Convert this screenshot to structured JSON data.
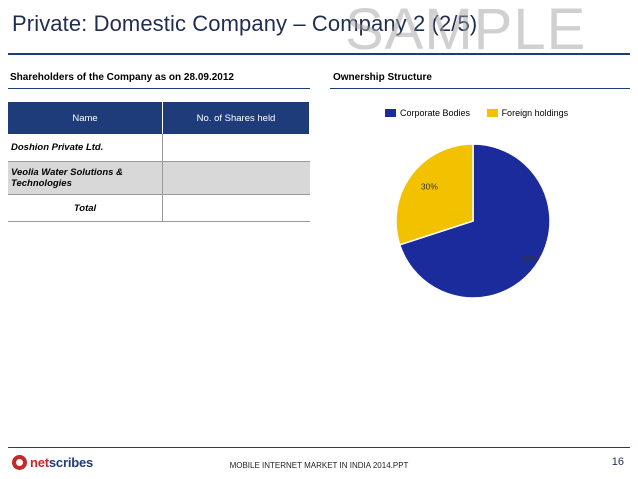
{
  "title": "Private: Domestic Company – Company 2 (2/5)",
  "watermark": "SAMPLE",
  "left_section": {
    "heading": "Shareholders of the Company as on 28.09.2012",
    "table": {
      "headers": [
        "Name",
        "No. of Shares held"
      ],
      "rows": [
        {
          "name": "Doshion Private Ltd.",
          "shares": ""
        },
        {
          "name": "Veolia Water Solutions & Technologies",
          "shares": ""
        }
      ],
      "total_label": "Total"
    }
  },
  "right_section": {
    "heading": "Ownership Structure"
  },
  "chart_data": {
    "type": "pie",
    "title": "",
    "slices": [
      {
        "label": "Corporate Bodies",
        "value": 70,
        "display": "70%",
        "color": "#1c2b9b"
      },
      {
        "label": "Foreign holdings",
        "value": 30,
        "display": "30%",
        "color": "#f2c200"
      }
    ],
    "legend_position": "top"
  },
  "footer": {
    "logo_text_net": "net",
    "logo_text_rest": "scribes",
    "center_text": "MOBILE INTERNET MARKET IN INDIA 2014.PPT",
    "page_number": "16"
  }
}
